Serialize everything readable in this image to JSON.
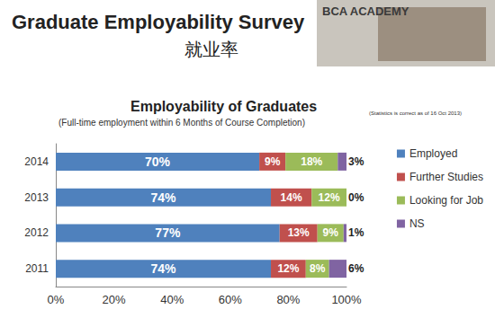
{
  "slide": {
    "title": "Graduate Employability Survey",
    "subtitle": "就业率",
    "image_caption": "BCA ACADEMY"
  },
  "chart_data": {
    "type": "bar",
    "orientation": "horizontal",
    "stacked": true,
    "data_labels": true,
    "grid": false,
    "legend": "right",
    "title": "Employability of Graduates",
    "subtitle": "(Full-time employment within 6 Months of Course Completion)",
    "annotations": [
      "(Statistics is correct as of 16 Oct 2013)"
    ],
    "categories": [
      "2011",
      "2012",
      "2013",
      "2014"
    ],
    "xlim": [
      0,
      100
    ],
    "xticks": [
      {
        "value": 0,
        "label": "0%"
      },
      {
        "value": 20,
        "label": "20%"
      },
      {
        "value": 40,
        "label": "40%"
      },
      {
        "value": 60,
        "label": "60%"
      },
      {
        "value": 80,
        "label": "80%"
      },
      {
        "value": 100,
        "label": "100%"
      }
    ],
    "series": [
      {
        "name": "Employed",
        "color": "#4f81bd",
        "values": [
          74,
          77,
          74,
          70
        ],
        "value_labels": [
          "74%",
          "77%",
          "74%",
          "70%"
        ]
      },
      {
        "name": "Further Studies",
        "color": "#c0504d",
        "values": [
          12,
          13,
          14,
          9
        ],
        "value_labels": [
          "12%",
          "13%",
          "14%",
          "9%"
        ]
      },
      {
        "name": "Looking for Job",
        "color": "#9bbb59",
        "values": [
          8,
          9,
          12,
          18
        ],
        "value_labels": [
          "8%",
          "9%",
          "12%",
          "18%"
        ]
      },
      {
        "name": "NS",
        "color": "#8064a2",
        "values": [
          6,
          1,
          0,
          3
        ],
        "value_labels": [
          "6%",
          "1%",
          "0%",
          "3%"
        ]
      }
    ]
  }
}
